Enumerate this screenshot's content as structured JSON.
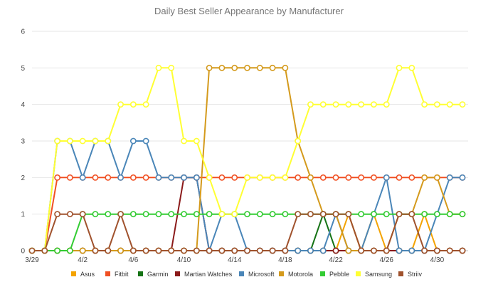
{
  "chart_data": {
    "type": "line",
    "title": "Daily Best Seller Appearance by Manufacturer",
    "xlabel": "",
    "ylabel": "",
    "ylim": [
      0,
      6
    ],
    "y_ticks": [
      "0",
      "1",
      "2",
      "3",
      "4",
      "5",
      "6"
    ],
    "x": [
      "3/29",
      "3/30",
      "3/31",
      "4/1",
      "4/2",
      "4/3",
      "4/4",
      "4/5",
      "4/6",
      "4/7",
      "4/8",
      "4/9",
      "4/10",
      "4/11",
      "4/12",
      "4/13",
      "4/14",
      "4/15",
      "4/16",
      "4/17",
      "4/18",
      "4/19",
      "4/20",
      "4/21",
      "4/22",
      "4/23",
      "4/24",
      "4/25",
      "4/26",
      "4/27",
      "4/28",
      "4/29",
      "4/30",
      "5/1",
      "5/2"
    ],
    "x_tick_labels": [
      {
        "index": 0,
        "label": "3/29"
      },
      {
        "index": 4,
        "label": "4/2"
      },
      {
        "index": 8,
        "label": "4/6"
      },
      {
        "index": 12,
        "label": "4/10"
      },
      {
        "index": 16,
        "label": "4/14"
      },
      {
        "index": 20,
        "label": "4/18"
      },
      {
        "index": 24,
        "label": "4/22"
      },
      {
        "index": 28,
        "label": "4/26"
      },
      {
        "index": 32,
        "label": "4/30"
      }
    ],
    "grid": true,
    "legend_position": "bottom",
    "series": [
      {
        "name": "Asus",
        "color": "#f4a300",
        "values": [
          0,
          0,
          0,
          0,
          0,
          0,
          0,
          0,
          0,
          0,
          0,
          0,
          0,
          0,
          0,
          0,
          0,
          0,
          0,
          0,
          0,
          0,
          0,
          0,
          0,
          1,
          0,
          1,
          0,
          0,
          0,
          1,
          0,
          0,
          0
        ]
      },
      {
        "name": "Fitbit",
        "color": "#f05023",
        "values": [
          0,
          0,
          2,
          2,
          2,
          2,
          2,
          2,
          2,
          2,
          2,
          2,
          2,
          2,
          2,
          2,
          2,
          2,
          2,
          2,
          2,
          2,
          2,
          2,
          2,
          2,
          2,
          2,
          2,
          2,
          2,
          2,
          2,
          2,
          2
        ]
      },
      {
        "name": "Garmin",
        "color": "#157315",
        "values": [
          0,
          0,
          0,
          0,
          0,
          0,
          0,
          0,
          0,
          0,
          0,
          0,
          0,
          0,
          0,
          0,
          0,
          0,
          0,
          0,
          0,
          0,
          0,
          1,
          0,
          0,
          0,
          0,
          0,
          0,
          0,
          0,
          0,
          0,
          0
        ]
      },
      {
        "name": "Martian Watches",
        "color": "#8b1a1a",
        "values": [
          0,
          0,
          0,
          0,
          0,
          0,
          0,
          0,
          0,
          0,
          0,
          0,
          2,
          2,
          0,
          0,
          0,
          0,
          0,
          0,
          0,
          0,
          0,
          0,
          0,
          0,
          0,
          0,
          0,
          0,
          0,
          0,
          0,
          0,
          0
        ]
      },
      {
        "name": "Microsoft",
        "color": "#4a86b8",
        "values": [
          0,
          0,
          3,
          3,
          2,
          3,
          3,
          2,
          3,
          3,
          2,
          2,
          2,
          2,
          0,
          1,
          1,
          0,
          0,
          0,
          0,
          0,
          0,
          0,
          1,
          0,
          0,
          1,
          2,
          0,
          0,
          0,
          1,
          2,
          2
        ]
      },
      {
        "name": "Motorola",
        "color": "#d49a1c",
        "values": [
          0,
          0,
          0,
          0,
          0,
          0,
          0,
          0,
          0,
          0,
          0,
          0,
          0,
          0,
          5,
          5,
          5,
          5,
          5,
          5,
          5,
          3,
          2,
          1,
          1,
          0,
          0,
          0,
          0,
          1,
          1,
          2,
          2,
          1,
          1
        ]
      },
      {
        "name": "Pebble",
        "color": "#33cc33",
        "values": [
          0,
          0,
          0,
          0,
          1,
          1,
          1,
          1,
          1,
          1,
          1,
          1,
          1,
          1,
          1,
          1,
          1,
          1,
          1,
          1,
          1,
          1,
          1,
          1,
          1,
          1,
          1,
          1,
          1,
          1,
          1,
          1,
          1,
          1,
          1
        ]
      },
      {
        "name": "Samsung",
        "color": "#ffff33",
        "values": [
          0,
          0,
          3,
          3,
          3,
          3,
          3,
          4,
          4,
          4,
          5,
          5,
          3,
          3,
          2,
          1,
          1,
          2,
          2,
          2,
          2,
          3,
          4,
          4,
          4,
          4,
          4,
          4,
          4,
          5,
          5,
          4,
          4,
          4,
          4
        ]
      },
      {
        "name": "Striiv",
        "color": "#a0522d",
        "values": [
          0,
          0,
          1,
          1,
          1,
          0,
          0,
          1,
          0,
          0,
          0,
          0,
          0,
          0,
          0,
          0,
          0,
          0,
          0,
          0,
          0,
          1,
          1,
          1,
          1,
          1,
          0,
          0,
          0,
          1,
          1,
          0,
          0,
          0,
          0
        ]
      }
    ]
  }
}
